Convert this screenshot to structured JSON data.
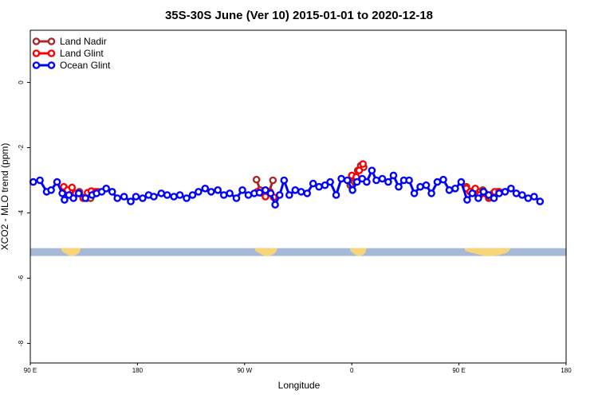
{
  "chart_data": {
    "type": "line",
    "title": "35S-30S June (Ver 10)   2015-01-01 to 2020-12-18",
    "xlabel": "Longitude",
    "ylabel": "XCO2 - MLO trend (ppm)",
    "xlim": [
      90,
      450
    ],
    "ylim": [
      -8.6,
      1.6
    ],
    "x_ticks": [
      90,
      162,
      234,
      306,
      378,
      450
    ],
    "x_tick_labels": [
      "90 E",
      "180",
      "90 W",
      "0",
      "90 E",
      "180"
    ],
    "y_ticks": [
      0,
      -2,
      -4,
      -6,
      -8
    ],
    "y_tick_labels": [
      "0",
      "-2",
      "-4",
      "-6",
      "-8"
    ],
    "grid": false,
    "legend_position": "top-left",
    "colors": {
      "land_nadir": "#a52a2a",
      "land_glint": "#ff0000",
      "ocean_glint": "#0000ff",
      "ocean_strip": "#a6b9d6",
      "land_strip": "#f9d57a"
    },
    "map_strip": {
      "y_range": [
        -5.08,
        -5.32
      ],
      "land_segments": [
        [
          111,
          124
        ],
        [
          241,
          256
        ],
        [
          305,
          316
        ],
        [
          382,
          413
        ]
      ]
    },
    "series": [
      {
        "name": "Land Nadir",
        "key": "land_nadir",
        "segments": [
          [
            [
              112.5,
              -3.25
            ],
            [
              114.5,
              -3.35
            ],
            [
              117.5,
              -3.3
            ],
            [
              120,
              -3.4
            ],
            [
              123,
              -3.35
            ],
            [
              128,
              -3.55
            ],
            [
              130.5,
              -3.55
            ],
            [
              133,
              -3.4
            ],
            [
              135.5,
              -3.35
            ]
          ],
          [
            [
              242,
              -2.98
            ],
            [
              244.5,
              -3.3
            ],
            [
              247.5,
              -3.4
            ],
            [
              250.5,
              -3.35
            ],
            [
              253,
              -3.0
            ]
          ],
          [
            [
              305,
              -3.15
            ],
            [
              307,
              -2.9
            ],
            [
              310,
              -2.7
            ],
            [
              312,
              -2.55
            ],
            [
              314,
              -2.6
            ]
          ],
          [
            [
              383,
              -3.2
            ],
            [
              386,
              -3.35
            ],
            [
              388.5,
              -3.3
            ],
            [
              391,
              -3.35
            ],
            [
              394,
              -3.3
            ],
            [
              398,
              -3.55
            ],
            [
              401,
              -3.4
            ],
            [
              404,
              -3.35
            ]
          ]
        ]
      },
      {
        "name": "Land Glint",
        "key": "land_glint",
        "segments": [
          [
            [
              112.5,
              -3.2
            ],
            [
              115,
              -3.3
            ],
            [
              118,
              -3.22
            ],
            [
              120.5,
              -3.4
            ],
            [
              125.5,
              -3.55
            ],
            [
              128.5,
              -3.38
            ],
            [
              131,
              -3.33
            ],
            [
              134,
              -3.35
            ]
          ],
          [
            [
              242.5,
              -3.35
            ],
            [
              245,
              -3.38
            ],
            [
              248,
              -3.5
            ],
            [
              251,
              -3.35
            ],
            [
              253.5,
              -3.52
            ]
          ],
          [
            [
              306,
              -2.85
            ],
            [
              309,
              -2.9
            ],
            [
              311,
              -2.7
            ],
            [
              313.5,
              -2.5
            ]
          ],
          [
            [
              383,
              -3.25
            ],
            [
              385.5,
              -3.35
            ],
            [
              389,
              -3.25
            ],
            [
              392,
              -3.45
            ],
            [
              395.5,
              -3.4
            ],
            [
              399,
              -3.52
            ],
            [
              402,
              -3.35
            ],
            [
              405,
              -3.35
            ]
          ]
        ]
      },
      {
        "name": "Ocean Glint",
        "key": "ocean_glint",
        "segments": [
          [
            [
              92,
              -3.05
            ],
            [
              96.5,
              -3.0
            ],
            [
              101,
              -3.35
            ],
            [
              104,
              -3.3
            ],
            [
              108,
              -3.05
            ],
            [
              111.5,
              -3.4
            ],
            [
              113,
              -3.6
            ],
            [
              116,
              -3.45
            ],
            [
              119,
              -3.55
            ],
            [
              122.5,
              -3.4
            ],
            [
              127,
              -3.55
            ],
            [
              131.5,
              -3.45
            ],
            [
              134.5,
              -3.4
            ],
            [
              138,
              -3.35
            ],
            [
              141,
              -3.25
            ],
            [
              145,
              -3.35
            ],
            [
              148.5,
              -3.55
            ],
            [
              153,
              -3.5
            ],
            [
              157.5,
              -3.65
            ],
            [
              161,
              -3.5
            ],
            [
              165.5,
              -3.55
            ],
            [
              169.5,
              -3.45
            ],
            [
              173,
              -3.5
            ],
            [
              178,
              -3.4
            ],
            [
              182,
              -3.45
            ],
            [
              186.5,
              -3.5
            ],
            [
              190.5,
              -3.45
            ],
            [
              195,
              -3.55
            ],
            [
              199,
              -3.45
            ],
            [
              203,
              -3.35
            ],
            [
              207.5,
              -3.25
            ],
            [
              211.5,
              -3.35
            ],
            [
              216,
              -3.3
            ],
            [
              220,
              -3.45
            ],
            [
              224,
              -3.4
            ],
            [
              228.5,
              -3.55
            ],
            [
              232.5,
              -3.3
            ],
            [
              236.5,
              -3.45
            ],
            [
              240.5,
              -3.4
            ],
            [
              244,
              -3.38
            ],
            [
              248,
              -3.3
            ],
            [
              251.5,
              -3.4
            ],
            [
              254.5,
              -3.75
            ],
            [
              257.5,
              -3.45
            ],
            [
              260.5,
              -3.0
            ],
            [
              264,
              -3.45
            ],
            [
              268,
              -3.3
            ],
            [
              272,
              -3.35
            ],
            [
              276,
              -3.4
            ],
            [
              280,
              -3.1
            ],
            [
              284,
              -3.2
            ],
            [
              288,
              -3.15
            ],
            [
              291.5,
              -3.05
            ],
            [
              295.5,
              -3.45
            ],
            [
              299,
              -2.95
            ],
            [
              303,
              -3.0
            ],
            [
              306.5,
              -3.3
            ],
            [
              309.5,
              -3.05
            ],
            [
              313,
              -2.95
            ],
            [
              316,
              -3.05
            ],
            [
              319.5,
              -2.7
            ],
            [
              322.5,
              -3.0
            ],
            [
              326.5,
              -2.95
            ],
            [
              330.5,
              -3.05
            ],
            [
              334,
              -2.85
            ],
            [
              337.5,
              -3.2
            ],
            [
              341,
              -3.0
            ],
            [
              344.5,
              -3.0
            ],
            [
              348,
              -3.4
            ],
            [
              352,
              -3.2
            ],
            [
              356,
              -3.15
            ],
            [
              359.5,
              -3.4
            ],
            [
              363.5,
              -3.05
            ],
            [
              367.5,
              -2.98
            ],
            [
              371.5,
              -3.3
            ],
            [
              375.5,
              -3.25
            ],
            [
              379.5,
              -3.05
            ],
            [
              383.5,
              -3.6
            ],
            [
              387,
              -3.4
            ],
            [
              391,
              -3.55
            ],
            [
              394.5,
              -3.35
            ],
            [
              398,
              -3.45
            ],
            [
              401.5,
              -3.55
            ],
            [
              405,
              -3.4
            ],
            [
              409,
              -3.35
            ],
            [
              413,
              -3.25
            ],
            [
              416.5,
              -3.4
            ],
            [
              420.5,
              -3.45
            ],
            [
              424.5,
              -3.55
            ],
            [
              428.5,
              -3.5
            ],
            [
              432.5,
              -3.65
            ]
          ]
        ]
      }
    ]
  }
}
